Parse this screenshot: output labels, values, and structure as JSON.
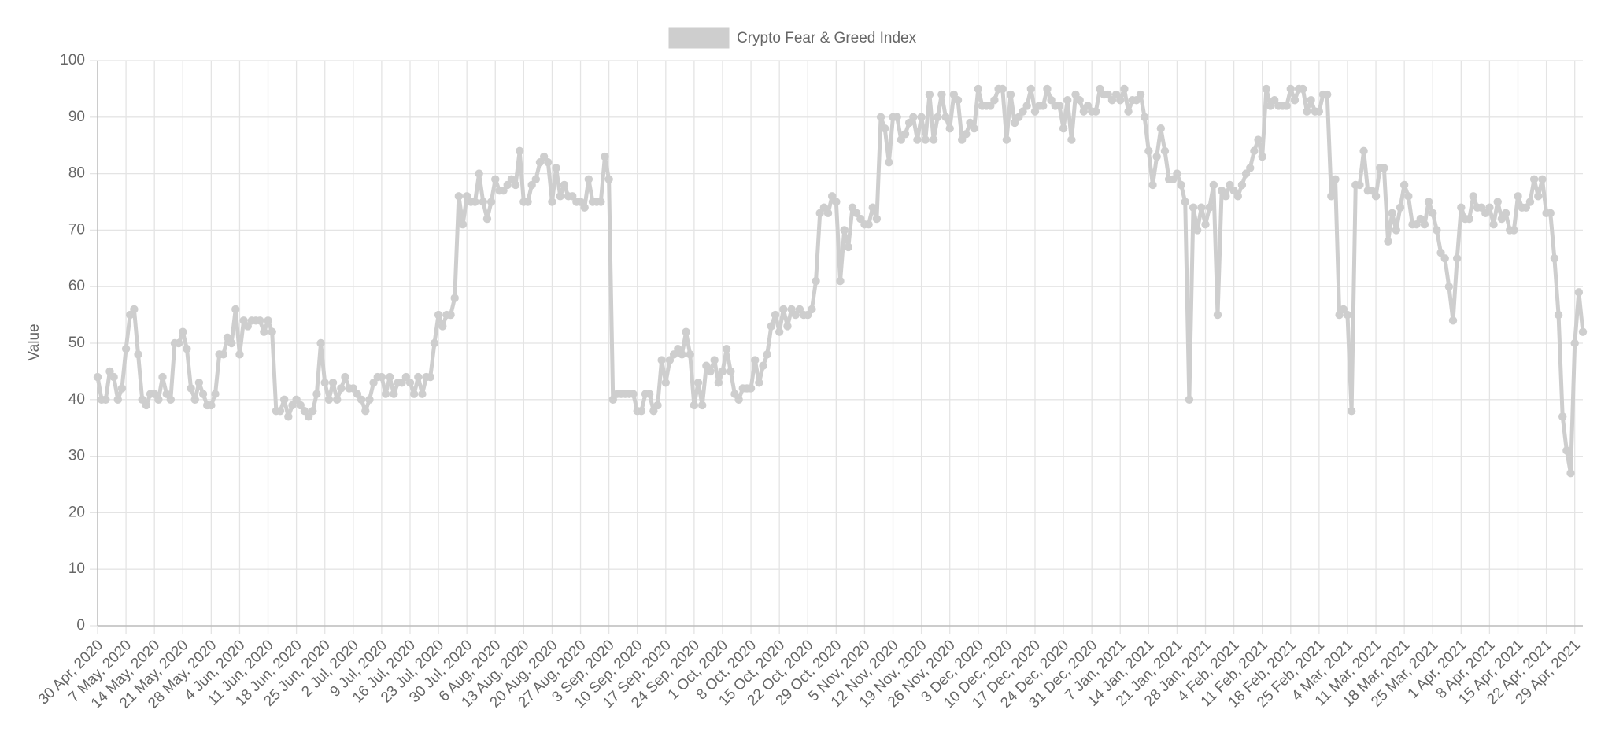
{
  "chart_data": {
    "type": "line",
    "y_label": "Value",
    "ylim": [
      0,
      100
    ],
    "yticks": [
      0,
      10,
      20,
      30,
      40,
      50,
      60,
      70,
      80,
      90,
      100
    ],
    "grid": true,
    "legend": "top",
    "categories": [
      "30 Apr, 2020",
      null,
      null,
      null,
      null,
      null,
      null,
      "7 May, 2020",
      null,
      null,
      null,
      null,
      null,
      null,
      "14 May, 2020",
      null,
      null,
      null,
      null,
      null,
      null,
      "21 May, 2020",
      null,
      null,
      null,
      null,
      null,
      null,
      "28 May, 2020",
      null,
      null,
      null,
      null,
      null,
      null,
      "4 Jun, 2020",
      null,
      null,
      null,
      null,
      null,
      null,
      "11 Jun, 2020",
      null,
      null,
      null,
      null,
      null,
      null,
      "18 Jun, 2020",
      null,
      null,
      null,
      null,
      null,
      null,
      "25 Jun, 2020",
      null,
      null,
      null,
      null,
      null,
      null,
      "2 Jul, 2020",
      null,
      null,
      null,
      null,
      null,
      null,
      "9 Jul, 2020",
      null,
      null,
      null,
      null,
      null,
      null,
      "16 Jul, 2020",
      null,
      null,
      null,
      null,
      null,
      null,
      "23 Jul, 2020",
      null,
      null,
      null,
      null,
      null,
      null,
      "30 Jul, 2020",
      null,
      null,
      null,
      null,
      null,
      null,
      "6 Aug, 2020",
      null,
      null,
      null,
      null,
      null,
      null,
      "13 Aug, 2020",
      null,
      null,
      null,
      null,
      null,
      null,
      "20 Aug, 2020",
      null,
      null,
      null,
      null,
      null,
      null,
      "27 Aug, 2020",
      null,
      null,
      null,
      null,
      null,
      null,
      "3 Sep, 2020",
      null,
      null,
      null,
      null,
      null,
      null,
      "10 Sep, 2020",
      null,
      null,
      null,
      null,
      null,
      null,
      "17 Sep, 2020",
      null,
      null,
      null,
      null,
      null,
      null,
      "24 Sep, 2020",
      null,
      null,
      null,
      null,
      null,
      null,
      "1 Oct, 2020",
      null,
      null,
      null,
      null,
      null,
      null,
      "8 Oct, 2020",
      null,
      null,
      null,
      null,
      null,
      null,
      "15 Oct, 2020",
      null,
      null,
      null,
      null,
      null,
      null,
      "22 Oct, 2020",
      null,
      null,
      null,
      null,
      null,
      null,
      "29 Oct, 2020",
      null,
      null,
      null,
      null,
      null,
      null,
      "5 Nov, 2020",
      null,
      null,
      null,
      null,
      null,
      null,
      "12 Nov, 2020",
      null,
      null,
      null,
      null,
      null,
      null,
      "19 Nov, 2020",
      null,
      null,
      null,
      null,
      null,
      null,
      "26 Nov, 2020",
      null,
      null,
      null,
      null,
      null,
      null,
      "3 Dec, 2020",
      null,
      null,
      null,
      null,
      null,
      null,
      "10 Dec, 2020",
      null,
      null,
      null,
      null,
      null,
      null,
      "17 Dec, 2020",
      null,
      null,
      null,
      null,
      null,
      null,
      "24 Dec, 2020",
      null,
      null,
      null,
      null,
      null,
      null,
      "31 Dec, 2020",
      null,
      null,
      null,
      null,
      null,
      null,
      "7 Jan, 2021",
      null,
      null,
      null,
      null,
      null,
      null,
      "14 Jan, 2021",
      null,
      null,
      null,
      null,
      null,
      null,
      "21 Jan, 2021",
      null,
      null,
      null,
      null,
      null,
      null,
      "28 Jan, 2021",
      null,
      null,
      null,
      null,
      null,
      null,
      "4 Feb, 2021",
      null,
      null,
      null,
      null,
      null,
      null,
      "11 Feb, 2021",
      null,
      null,
      null,
      null,
      null,
      null,
      "18 Feb, 2021",
      null,
      null,
      null,
      null,
      null,
      null,
      "25 Feb, 2021",
      null,
      null,
      null,
      null,
      null,
      null,
      "4 Mar, 2021",
      null,
      null,
      null,
      null,
      null,
      null,
      "11 Mar, 2021",
      null,
      null,
      null,
      null,
      null,
      null,
      "18 Mar, 2021",
      null,
      null,
      null,
      null,
      null,
      null,
      "25 Mar, 2021",
      null,
      null,
      null,
      null,
      null,
      null,
      "1 Apr, 2021",
      null,
      null,
      null,
      null,
      null,
      null,
      "8 Apr, 2021",
      null,
      null,
      null,
      null,
      null,
      null,
      "15 Apr, 2021",
      null,
      null,
      null,
      null,
      null,
      null,
      "22 Apr, 2021",
      null,
      null,
      null,
      null,
      null,
      null,
      "29 Apr, 2021",
      null,
      null
    ],
    "series": [
      {
        "name": "Crypto Fear & Greed Index",
        "color": "#cecece",
        "values": [
          44,
          40,
          40,
          45,
          44,
          40,
          42,
          49,
          55,
          56,
          48,
          40,
          39,
          41,
          41,
          40,
          44,
          41,
          40,
          50,
          50,
          52,
          49,
          42,
          40,
          43,
          41,
          39,
          39,
          41,
          48,
          48,
          51,
          50,
          56,
          48,
          54,
          53,
          54,
          54,
          54,
          52,
          54,
          52,
          38,
          38,
          40,
          37,
          39,
          40,
          39,
          38,
          37,
          38,
          41,
          50,
          43,
          40,
          43,
          40,
          42,
          44,
          42,
          42,
          41,
          40,
          38,
          40,
          43,
          44,
          44,
          41,
          44,
          41,
          43,
          43,
          44,
          43,
          41,
          44,
          41,
          44,
          44,
          50,
          55,
          53,
          55,
          55,
          58,
          76,
          71,
          76,
          75,
          75,
          80,
          75,
          72,
          75,
          79,
          77,
          77,
          78,
          79,
          78,
          84,
          75,
          75,
          78,
          79,
          82,
          83,
          82,
          75,
          81,
          76,
          78,
          76,
          76,
          75,
          75,
          74,
          79,
          75,
          75,
          75,
          83,
          79,
          40,
          41,
          41,
          41,
          41,
          41,
          38,
          38,
          41,
          41,
          38,
          39,
          47,
          43,
          47,
          48,
          49,
          48,
          52,
          48,
          39,
          43,
          39,
          46,
          45,
          47,
          43,
          45,
          49,
          45,
          41,
          40,
          42,
          42,
          42,
          47,
          43,
          46,
          48,
          53,
          55,
          52,
          56,
          53,
          56,
          55,
          56,
          55,
          55,
          56,
          61,
          73,
          74,
          73,
          76,
          75,
          61,
          70,
          67,
          74,
          73,
          72,
          71,
          71,
          74,
          72,
          90,
          88,
          82,
          90,
          90,
          86,
          87,
          89,
          90,
          86,
          90,
          86,
          94,
          86,
          90,
          94,
          90,
          88,
          94,
          93,
          86,
          87,
          89,
          88,
          95,
          92,
          92,
          92,
          93,
          95,
          95,
          86,
          94,
          89,
          90,
          91,
          92,
          95,
          91,
          92,
          92,
          95,
          93,
          92,
          92,
          88,
          93,
          86,
          94,
          93,
          91,
          92,
          91,
          91,
          95,
          94,
          94,
          93,
          94,
          93,
          95,
          91,
          93,
          93,
          94,
          90,
          84,
          78,
          83,
          88,
          84,
          79,
          79,
          80,
          78,
          75,
          40,
          74,
          70,
          74,
          71,
          74,
          78,
          55,
          77,
          76,
          78,
          77,
          76,
          78,
          80,
          81,
          84,
          86,
          83,
          95,
          92,
          93,
          92,
          92,
          92,
          95,
          93,
          95,
          95,
          91,
          93,
          91,
          91,
          94,
          94,
          76,
          79,
          55,
          56,
          55,
          38,
          78,
          78,
          84,
          77,
          77,
          76,
          81,
          81,
          68,
          73,
          70,
          74,
          78,
          76,
          71,
          71,
          72,
          71,
          75,
          73,
          70,
          66,
          65,
          60,
          54,
          65,
          74,
          72,
          72,
          76,
          74,
          74,
          73,
          74,
          71,
          75,
          72,
          73,
          70,
          70,
          76,
          74,
          74,
          75,
          79,
          76,
          79,
          73,
          73,
          65,
          55,
          37,
          31,
          27,
          50,
          59,
          52
        ]
      }
    ]
  }
}
